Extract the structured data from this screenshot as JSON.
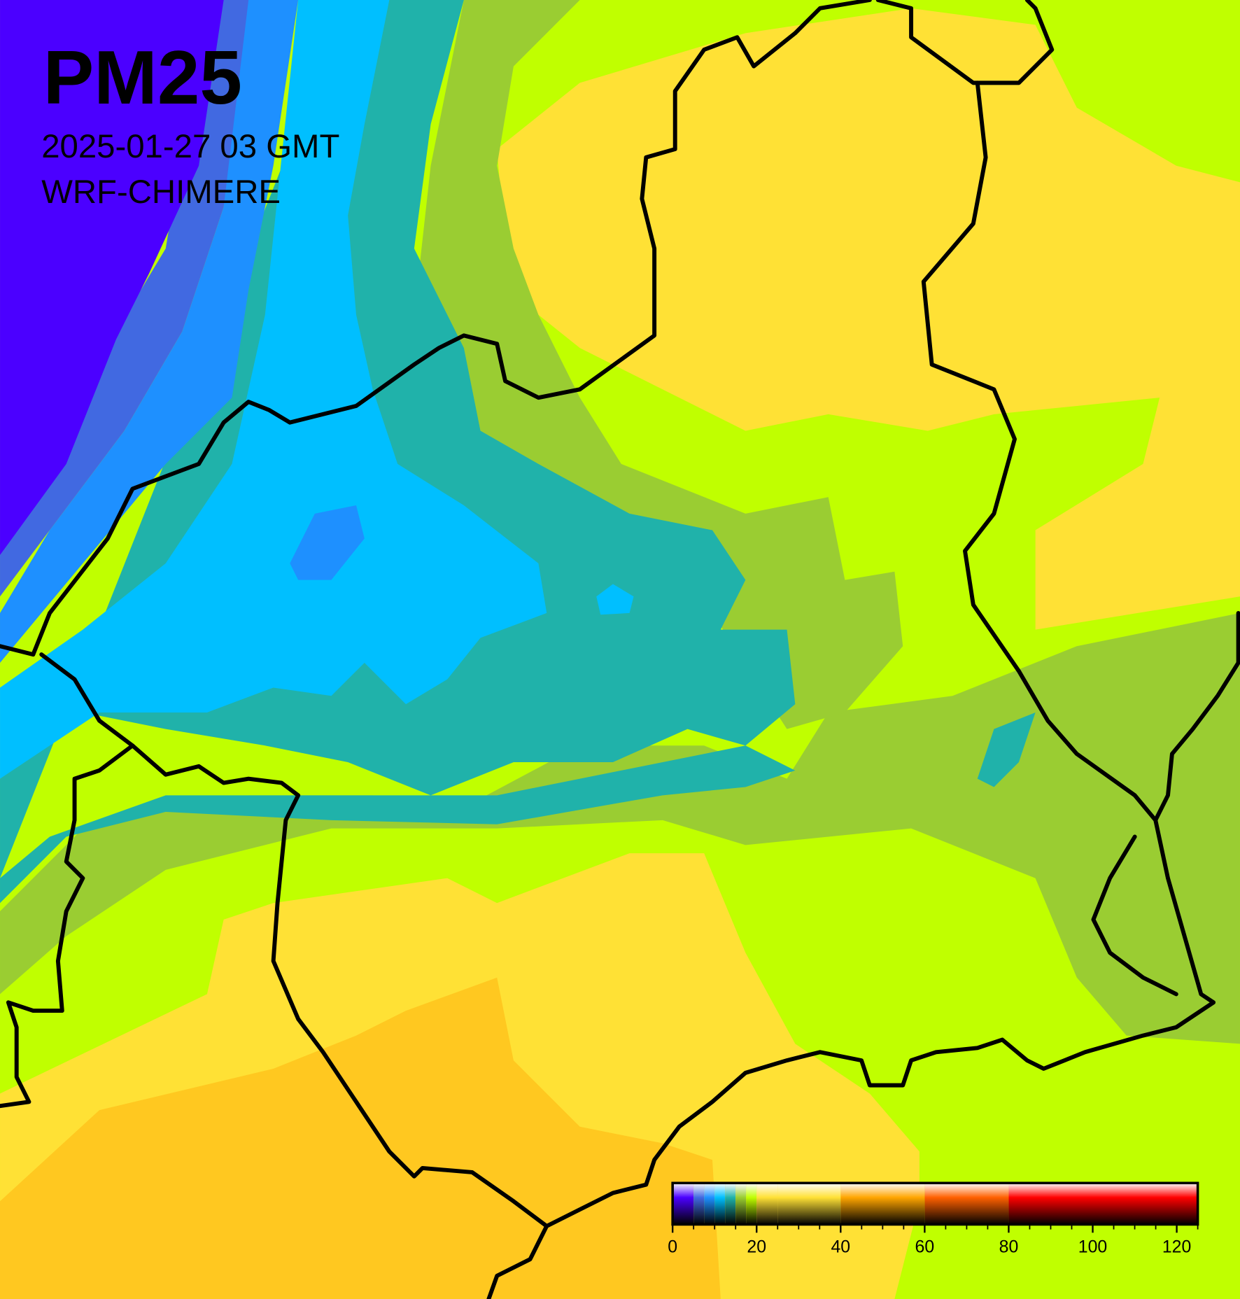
{
  "title": "PM25",
  "subtitle": "2025-01-27 03 GMT",
  "model": "WRF-CHIMERE",
  "colorbar": {
    "range": [
      0,
      125
    ],
    "ticks": [
      0,
      20,
      40,
      60,
      80,
      100,
      120
    ],
    "minor_ticks": [
      0,
      5,
      10,
      15,
      20,
      25,
      30,
      35,
      40,
      45,
      50,
      55,
      60,
      65,
      70,
      75,
      80,
      85,
      90,
      95,
      100,
      105,
      110,
      115,
      120,
      125
    ],
    "bands": [
      {
        "from": 0,
        "to": 5,
        "color": "#4b00ff"
      },
      {
        "from": 5,
        "to": 7.5,
        "color": "#4169e1"
      },
      {
        "from": 7.5,
        "to": 10,
        "color": "#1e90ff"
      },
      {
        "from": 10,
        "to": 12.5,
        "color": "#00bfff"
      },
      {
        "from": 12.5,
        "to": 15,
        "color": "#20b2aa"
      },
      {
        "from": 15,
        "to": 17.5,
        "color": "#9acd32"
      },
      {
        "from": 17.5,
        "to": 20,
        "color": "#c0ff00"
      },
      {
        "from": 20,
        "to": 25,
        "color": "#ffe135"
      },
      {
        "from": 25,
        "to": 40,
        "color": "#ffe135"
      },
      {
        "from": 40,
        "to": 60,
        "color": "#ffa500"
      },
      {
        "from": 60,
        "to": 80,
        "color": "#ff6000"
      },
      {
        "from": 80,
        "to": 125,
        "color": "#ff0000"
      }
    ]
  }
}
